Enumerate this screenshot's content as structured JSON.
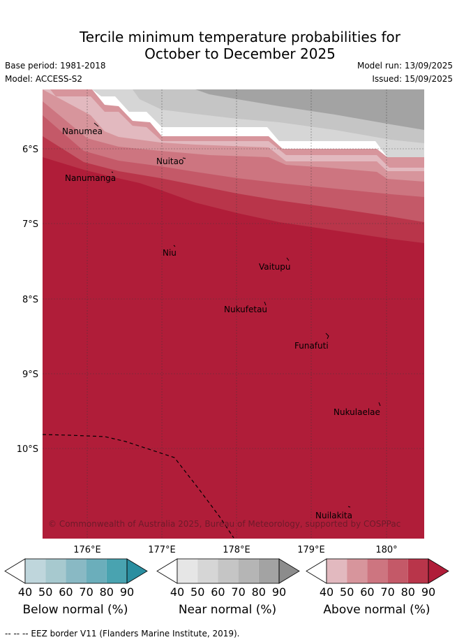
{
  "title": {
    "line1": "Tercile minimum temperature probabilities for",
    "line2": "October to December 2025"
  },
  "meta": {
    "base_period": "Base period: 1981-2018",
    "model": "Model: ACCESS-S2",
    "model_run": "Model run: 13/09/2025",
    "issued": "Issued: 15/09/2025"
  },
  "axes": {
    "lat_labels": [
      "6°S",
      "7°S",
      "8°S",
      "9°S",
      "10°S"
    ],
    "lon_labels": [
      "176°E",
      "177°E",
      "178°E",
      "179°E",
      "180°"
    ]
  },
  "places": [
    "Nanumea",
    "Nuitao",
    "Nanumanga",
    "Niu",
    "Vaitupu",
    "Nukufetau",
    "Funafuti",
    "Nukulaelae",
    "Nuilakita"
  ],
  "copyright": "© Commonwealth of Australia 2025, Bureau of Meteorology, supported by COSPPac",
  "colorbars": [
    {
      "label": "Below normal (%)",
      "ticks": [
        "40",
        "50",
        "60",
        "70",
        "80",
        "90"
      ],
      "colors": [
        "#ffffff",
        "#bfd6dc",
        "#a7c9cf",
        "#89b9c4",
        "#6baebb",
        "#49a3b0",
        "#2a8ea0"
      ]
    },
    {
      "label": "Near normal (%)",
      "ticks": [
        "40",
        "50",
        "60",
        "70",
        "80",
        "90"
      ],
      "colors": [
        "#ffffff",
        "#e6e6e6",
        "#d6d6d6",
        "#c5c5c5",
        "#b5b5b5",
        "#a3a3a3",
        "#8c8c8c"
      ]
    },
    {
      "label": "Above normal (%)",
      "ticks": [
        "40",
        "50",
        "60",
        "70",
        "80",
        "90"
      ],
      "colors": [
        "#ffffff",
        "#e2b9bf",
        "#d7959c",
        "#cd7580",
        "#c45968",
        "#b9354a",
        "#b01d39"
      ]
    }
  ],
  "footer": "-- -- -- EEZ border V11 (Flanders Marine Institute, 2019)."
}
